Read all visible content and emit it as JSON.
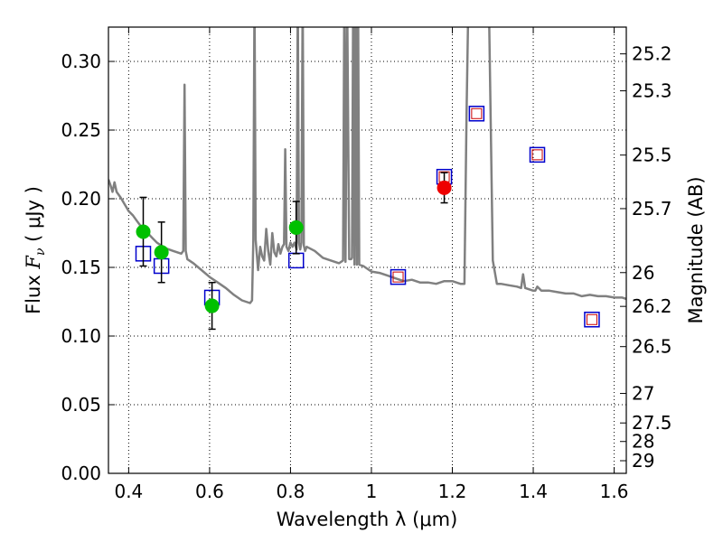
{
  "chart_data": {
    "type": "scatter",
    "xlabel": "Wavelength  λ (μm)",
    "ylabel_prefix": "Flux  ",
    "ylabel_symbol": "F",
    "ylabel_sub": "ν",
    "ylabel_suffix": "  ( μJy )",
    "y2label": "Magnitude (AB)",
    "xlim": [
      0.35,
      1.63
    ],
    "ylim": [
      0.0,
      0.325
    ],
    "grid": true,
    "xticks": [
      0.4,
      0.6,
      0.8,
      1.0,
      1.2,
      1.4,
      1.6
    ],
    "xtick_labels": [
      "0.4",
      "0.6",
      "0.8",
      "1",
      "1.2",
      "1.4",
      "1.6"
    ],
    "yticks": [
      0.0,
      0.05,
      0.1,
      0.15,
      0.2,
      0.25,
      0.3
    ],
    "ytick_labels": [
      "0.00",
      "0.05",
      "0.10",
      "0.15",
      "0.20",
      "0.25",
      "0.30"
    ],
    "mag_ticks": [
      {
        "label": "25.2",
        "flux": 0.3055
      },
      {
        "label": "25.3",
        "flux": 0.2786
      },
      {
        "label": "25.5",
        "flux": 0.2318
      },
      {
        "label": "25.7",
        "flux": 0.1928
      },
      {
        "label": "26",
        "flux": 0.1462
      },
      {
        "label": "26.2",
        "flux": 0.1216
      },
      {
        "label": "26.5",
        "flux": 0.0923
      },
      {
        "label": "27",
        "flux": 0.0582
      },
      {
        "label": "27.5",
        "flux": 0.0367
      },
      {
        "label": "28",
        "flux": 0.0232
      },
      {
        "label": "29",
        "flux": 0.0092
      }
    ],
    "colors": {
      "sed": "#808080",
      "green": "#00c000",
      "red": "#ee0000",
      "blue": "#0000cc",
      "box_inner": "#cc0000",
      "errbar": "#000000"
    },
    "sed_line": {
      "name": "Model SED",
      "x": [
        0.35,
        0.355,
        0.36,
        0.365,
        0.37,
        0.38,
        0.39,
        0.4,
        0.41,
        0.42,
        0.43,
        0.44,
        0.45,
        0.46,
        0.47,
        0.48,
        0.49,
        0.5,
        0.51,
        0.52,
        0.53,
        0.535,
        0.538,
        0.541,
        0.545,
        0.56,
        0.58,
        0.6,
        0.62,
        0.64,
        0.66,
        0.68,
        0.7,
        0.705,
        0.708,
        0.711,
        0.714,
        0.72,
        0.725,
        0.73,
        0.735,
        0.74,
        0.745,
        0.75,
        0.755,
        0.76,
        0.765,
        0.77,
        0.775,
        0.78,
        0.784,
        0.787,
        0.79,
        0.795,
        0.8,
        0.805,
        0.81,
        0.815,
        0.818,
        0.821,
        0.824,
        0.827,
        0.83,
        0.833,
        0.836,
        0.84,
        0.86,
        0.88,
        0.9,
        0.92,
        0.93,
        0.933,
        0.936,
        0.94,
        0.945,
        0.95,
        0.952,
        0.955,
        0.958,
        0.961,
        0.964,
        0.967,
        0.97,
        0.98,
        1.0,
        1.02,
        1.04,
        1.06,
        1.08,
        1.1,
        1.12,
        1.14,
        1.16,
        1.18,
        1.2,
        1.22,
        1.23,
        1.235,
        1.24,
        1.245,
        1.25,
        1.255,
        1.26,
        1.265,
        1.27,
        1.28,
        1.285,
        1.29,
        1.3,
        1.31,
        1.32,
        1.34,
        1.36,
        1.37,
        1.375,
        1.38,
        1.39,
        1.4,
        1.405,
        1.41,
        1.42,
        1.44,
        1.46,
        1.48,
        1.5,
        1.52,
        1.54,
        1.56,
        1.58,
        1.6,
        1.62,
        1.63
      ],
      "y": [
        0.214,
        0.21,
        0.205,
        0.212,
        0.205,
        0.201,
        0.196,
        0.191,
        0.188,
        0.184,
        0.18,
        0.177,
        0.174,
        0.171,
        0.168,
        0.166,
        0.164,
        0.163,
        0.162,
        0.161,
        0.16,
        0.162,
        0.283,
        0.162,
        0.156,
        0.153,
        0.148,
        0.143,
        0.139,
        0.135,
        0.13,
        0.126,
        0.124,
        0.126,
        0.17,
        0.35,
        0.17,
        0.148,
        0.165,
        0.158,
        0.155,
        0.178,
        0.162,
        0.152,
        0.175,
        0.161,
        0.158,
        0.167,
        0.16,
        0.165,
        0.167,
        0.236,
        0.165,
        0.162,
        0.168,
        0.165,
        0.168,
        0.163,
        0.35,
        0.168,
        0.163,
        0.168,
        0.35,
        0.166,
        0.162,
        0.165,
        0.162,
        0.157,
        0.155,
        0.153,
        0.155,
        0.35,
        0.154,
        0.35,
        0.156,
        0.156,
        0.157,
        0.35,
        0.152,
        0.35,
        0.152,
        0.35,
        0.152,
        0.151,
        0.147,
        0.146,
        0.144,
        0.142,
        0.14,
        0.141,
        0.139,
        0.139,
        0.138,
        0.14,
        0.14,
        0.138,
        0.138,
        0.26,
        0.35,
        0.35,
        0.35,
        0.35,
        0.35,
        0.35,
        0.35,
        0.35,
        0.35,
        0.35,
        0.155,
        0.138,
        0.138,
        0.137,
        0.136,
        0.135,
        0.145,
        0.135,
        0.134,
        0.133,
        0.133,
        0.136,
        0.133,
        0.133,
        0.132,
        0.131,
        0.131,
        0.129,
        0.13,
        0.129,
        0.129,
        0.128,
        0.128,
        0.127
      ]
    },
    "green_points": [
      {
        "x": 0.436,
        "y": 0.176,
        "err": 0.025
      },
      {
        "x": 0.481,
        "y": 0.161,
        "err": 0.022
      },
      {
        "x": 0.606,
        "y": 0.122,
        "err": 0.017
      },
      {
        "x": 0.814,
        "y": 0.179,
        "err": 0.019
      }
    ],
    "red_points": [
      {
        "x": 1.18,
        "y": 0.208,
        "err": 0.011
      }
    ],
    "blue_boxes": [
      {
        "x": 0.436,
        "y": 0.16
      },
      {
        "x": 0.481,
        "y": 0.151
      },
      {
        "x": 0.606,
        "y": 0.128
      },
      {
        "x": 0.814,
        "y": 0.155
      }
    ],
    "boxes_with_red": [
      {
        "x": 1.066,
        "y": 0.143
      },
      {
        "x": 1.18,
        "y": 0.216
      },
      {
        "x": 1.26,
        "y": 0.262
      },
      {
        "x": 1.41,
        "y": 0.232
      },
      {
        "x": 1.545,
        "y": 0.112
      }
    ]
  }
}
